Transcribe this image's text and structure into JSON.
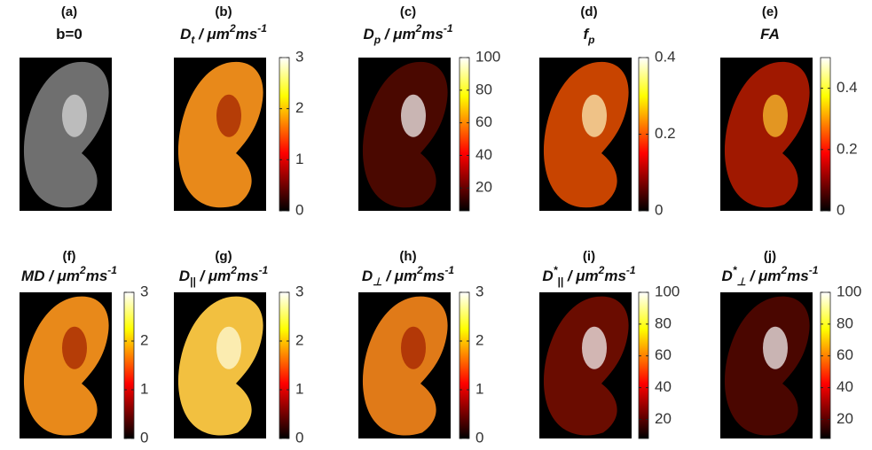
{
  "panels": [
    {
      "label": "(a)",
      "title": [
        {
          "text": "b=0"
        }
      ]
    },
    {
      "label": "(b)",
      "italic": true,
      "title": [
        {
          "text": "D"
        },
        {
          "text": "t",
          "sub": true
        },
        {
          "text": " / μm"
        },
        {
          "text": "2",
          "sup": true
        },
        {
          "text": "ms"
        },
        {
          "text": "-1",
          "sup": true
        }
      ],
      "colorbar": {
        "lim": [
          0,
          3
        ],
        "ticks": [
          0,
          1,
          2,
          3
        ]
      }
    },
    {
      "label": "(c)",
      "italic": true,
      "title": [
        {
          "text": "D"
        },
        {
          "text": "p",
          "sub": true
        },
        {
          "text": " / μm"
        },
        {
          "text": "2",
          "sup": true
        },
        {
          "text": "ms"
        },
        {
          "text": "-1",
          "sup": true
        }
      ],
      "colorbar": {
        "lim": [
          6,
          100
        ],
        "ticks": [
          20,
          40,
          60,
          80,
          100
        ]
      }
    },
    {
      "label": "(d)",
      "italic": true,
      "title": [
        {
          "text": "f"
        },
        {
          "text": "p",
          "sub": true
        }
      ],
      "colorbar": {
        "lim": [
          0,
          0.4
        ],
        "ticks": [
          0,
          0.2,
          0.4
        ]
      }
    },
    {
      "label": "(e)",
      "italic": true,
      "title": [
        {
          "text": "FA"
        }
      ],
      "colorbar": {
        "lim": [
          0,
          0.5
        ],
        "ticks": [
          0,
          0.2,
          0.4
        ]
      }
    },
    {
      "label": "(f)",
      "italic": true,
      "title": [
        {
          "text": "MD / μm"
        },
        {
          "text": "2",
          "sup": true
        },
        {
          "text": "ms"
        },
        {
          "text": "-1",
          "sup": true
        }
      ],
      "colorbar": {
        "lim": [
          0,
          3
        ],
        "ticks": [
          0,
          1,
          2,
          3
        ]
      }
    },
    {
      "label": "(g)",
      "italic": true,
      "title": [
        {
          "text": "D"
        },
        {
          "text": "||",
          "sub": true
        },
        {
          "text": " / μm"
        },
        {
          "text": "2",
          "sup": true
        },
        {
          "text": "ms"
        },
        {
          "text": "-1",
          "sup": true
        }
      ],
      "colorbar": {
        "lim": [
          0,
          3
        ],
        "ticks": [
          0,
          1,
          2,
          3
        ]
      }
    },
    {
      "label": "(h)",
      "italic": true,
      "title": [
        {
          "text": "D"
        },
        {
          "text": "⊥",
          "sub": true
        },
        {
          "text": " / μm"
        },
        {
          "text": "2",
          "sup": true
        },
        {
          "text": "ms"
        },
        {
          "text": "-1",
          "sup": true
        }
      ],
      "colorbar": {
        "lim": [
          0,
          3
        ],
        "ticks": [
          0,
          1,
          2,
          3
        ]
      }
    },
    {
      "label": "(i)",
      "italic": true,
      "title": [
        {
          "text": "D"
        },
        {
          "text": "*",
          "sup": true
        },
        {
          "text": "||",
          "sub": true
        },
        {
          "text": " / μm"
        },
        {
          "text": "2",
          "sup": true
        },
        {
          "text": "ms"
        },
        {
          "text": "-1",
          "sup": true
        }
      ],
      "colorbar": {
        "lim": [
          8,
          100
        ],
        "ticks": [
          20,
          40,
          60,
          80,
          100
        ]
      }
    },
    {
      "label": "(j)",
      "italic": true,
      "title": [
        {
          "text": "D"
        },
        {
          "text": "*",
          "sup": true
        },
        {
          "text": "⊥",
          "sub": true
        },
        {
          "text": " / μm"
        },
        {
          "text": "2",
          "sup": true
        },
        {
          "text": "ms"
        },
        {
          "text": "-1",
          "sup": true
        }
      ],
      "colorbar": {
        "lim": [
          8,
          100
        ],
        "ticks": [
          20,
          40,
          60,
          80,
          100
        ]
      }
    }
  ]
}
